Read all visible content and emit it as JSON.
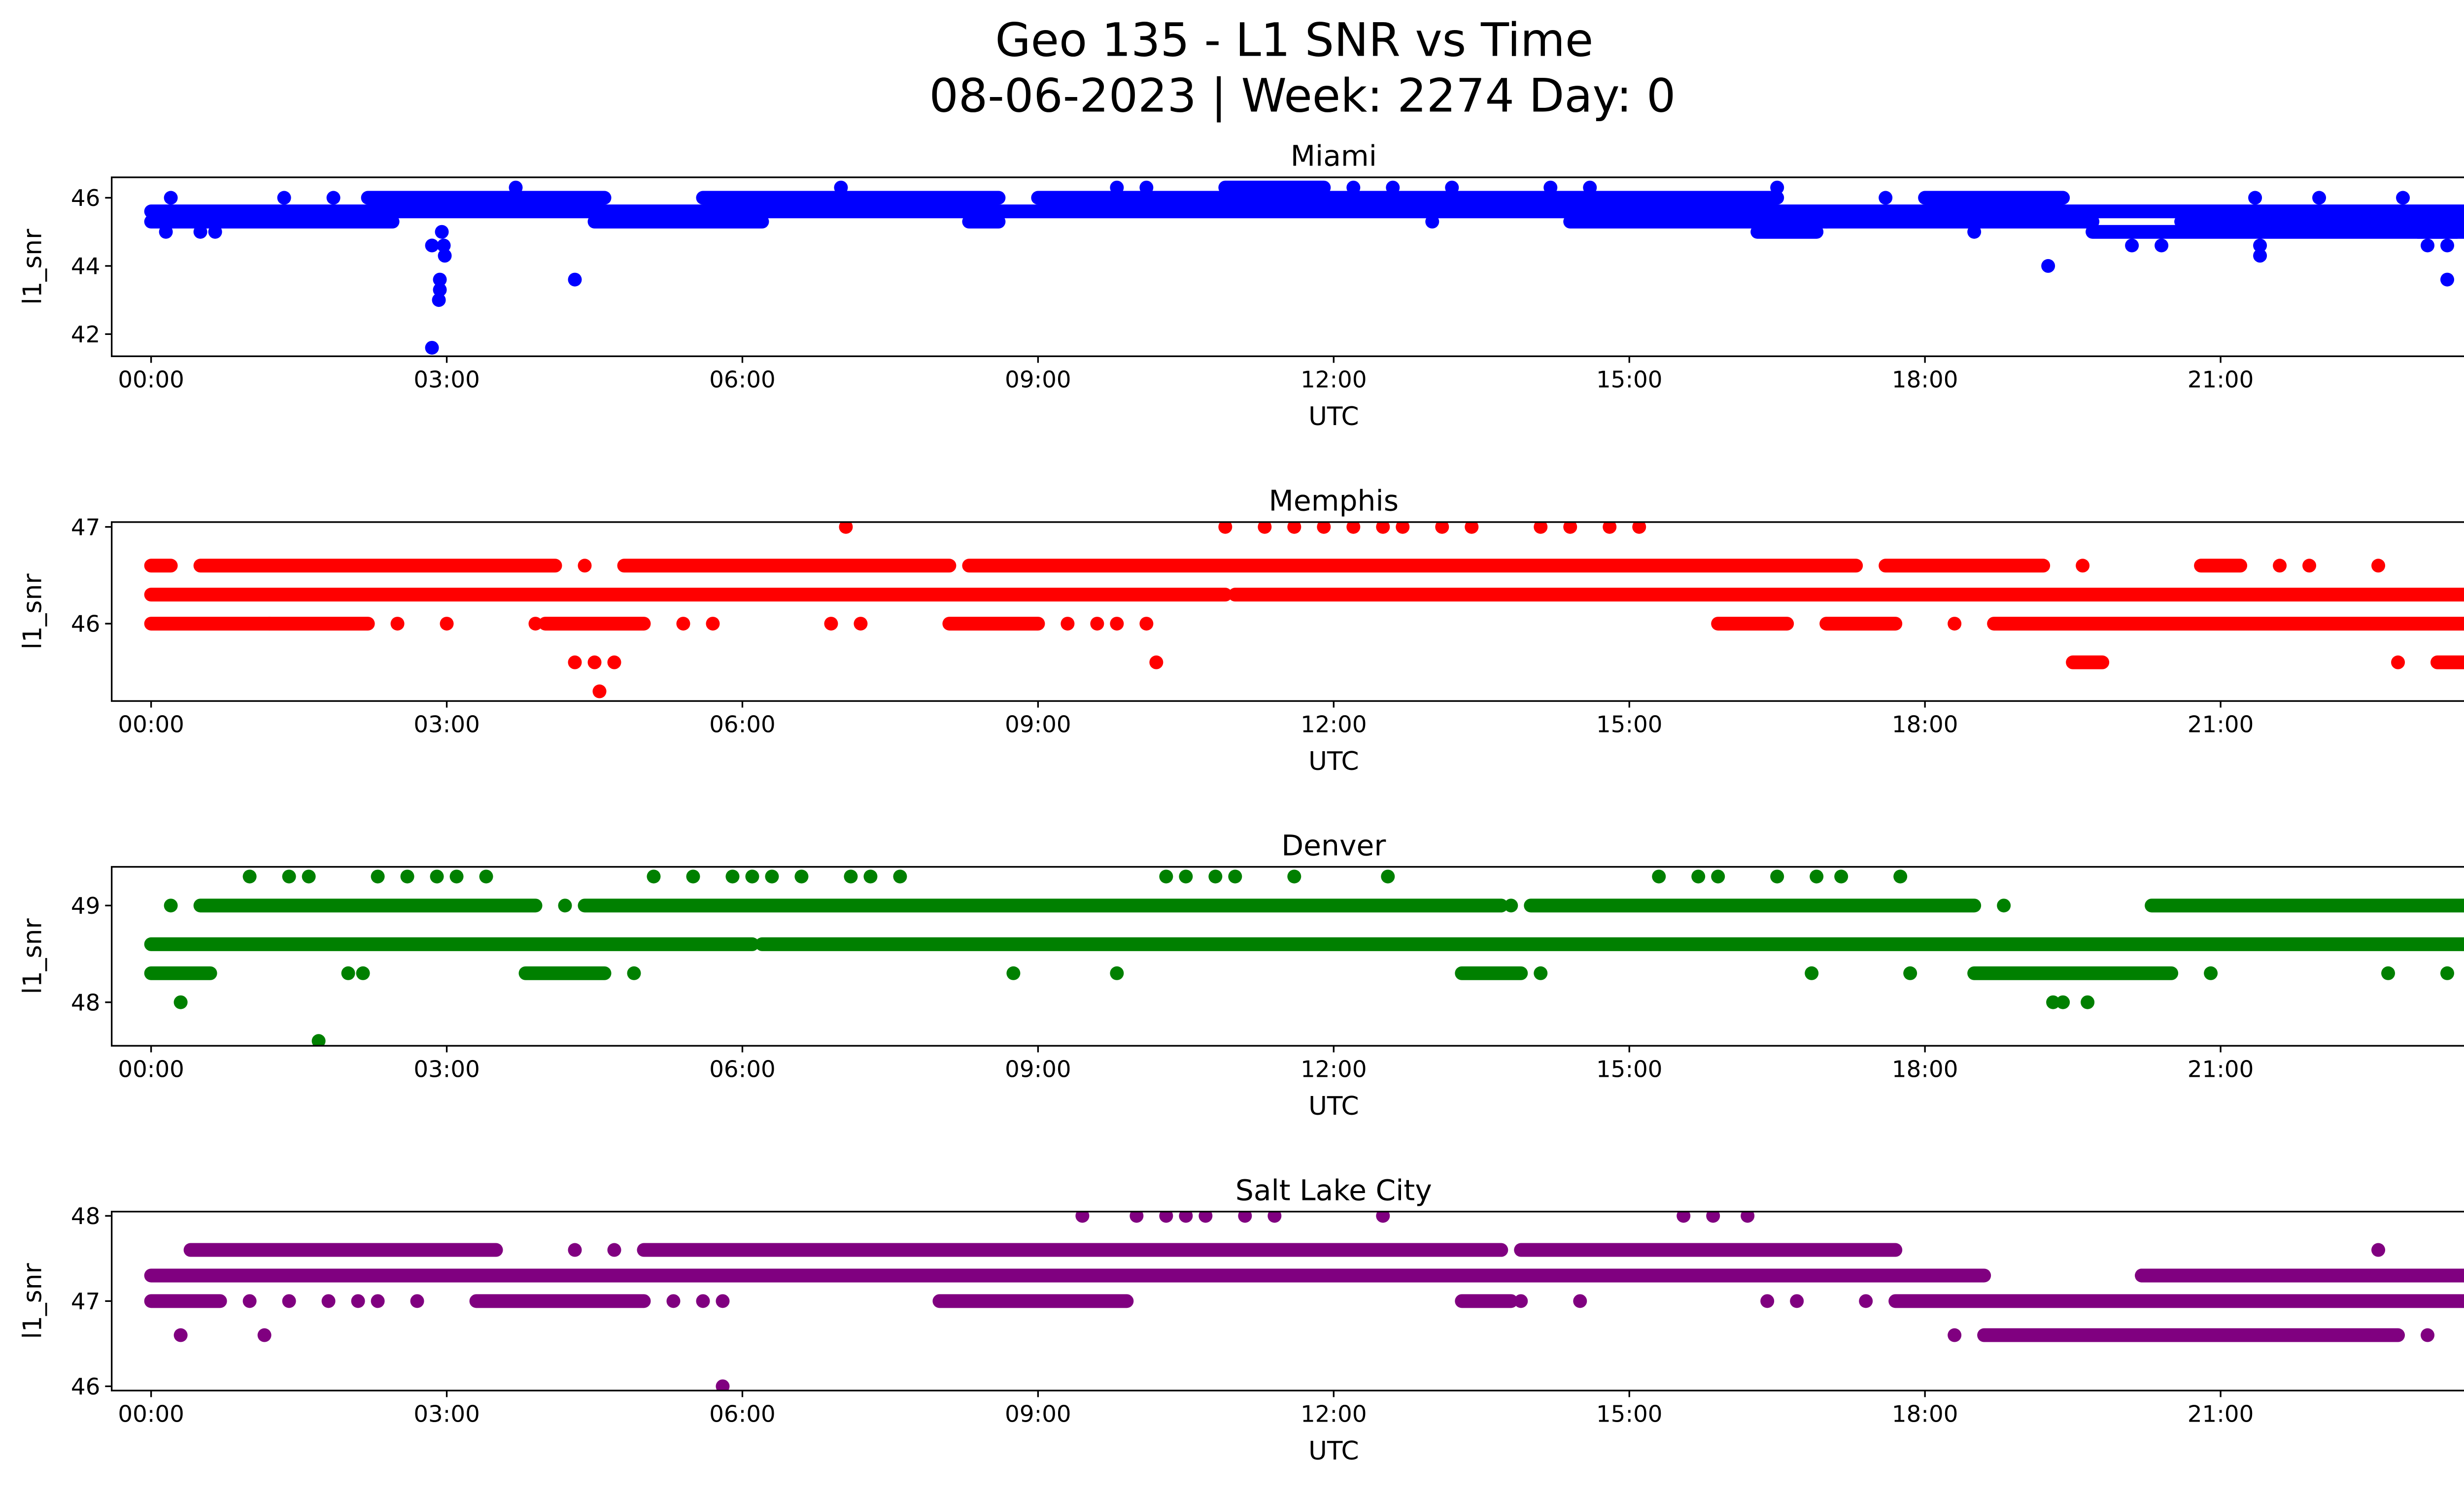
{
  "figure": {
    "title_line1": "Geo 135 - L1 SNR vs Time",
    "title_line2": "08-06-2023 | Week: 2274 Day: 0"
  },
  "chart_data": [
    {
      "type": "scatter",
      "title": "Miami",
      "color": "#0000ff",
      "xlabel": "UTC",
      "ylabel": "l1_snr",
      "xlim_hours": [
        -0.4,
        24.4
      ],
      "ylim": [
        41.35,
        46.6
      ],
      "x_ticks": [
        "00:00",
        "03:00",
        "06:00",
        "09:00",
        "12:00",
        "15:00",
        "18:00",
        "21:00",
        "00:00"
      ],
      "x_tick_hours": [
        0,
        3,
        6,
        9,
        12,
        15,
        18,
        21,
        24
      ],
      "y_ticks": [
        42,
        44,
        46
      ],
      "grid": false,
      "runs": [
        {
          "y": 45.3,
          "start": 0.0,
          "end": 2.45
        },
        {
          "y": 45.6,
          "start": 0.0,
          "end": 2.3
        },
        {
          "y": 45.6,
          "start": 2.3,
          "end": 24.0
        },
        {
          "y": 46.0,
          "start": 2.2,
          "end": 4.6
        },
        {
          "y": 45.3,
          "start": 4.5,
          "end": 6.2
        },
        {
          "y": 46.0,
          "start": 5.6,
          "end": 8.6
        },
        {
          "y": 45.3,
          "start": 8.3,
          "end": 8.6
        },
        {
          "y": 46.0,
          "start": 9.0,
          "end": 14.9
        },
        {
          "y": 46.3,
          "start": 10.9,
          "end": 11.9
        },
        {
          "y": 45.3,
          "start": 14.4,
          "end": 19.7
        },
        {
          "y": 45.0,
          "start": 16.3,
          "end": 16.9
        },
        {
          "y": 46.0,
          "start": 18.0,
          "end": 19.4
        },
        {
          "y": 45.0,
          "start": 19.7,
          "end": 23.4
        },
        {
          "y": 45.3,
          "start": 20.6,
          "end": 23.2
        },
        {
          "y": 46.0,
          "start": 14.5,
          "end": 16.5
        },
        {
          "y": 45.3,
          "start": 23.3,
          "end": 24.0
        },
        {
          "y": 45.0,
          "start": 23.0,
          "end": 23.6
        }
      ],
      "points": [
        {
          "t": 0.2,
          "y": 46.0
        },
        {
          "t": 0.15,
          "y": 45.0
        },
        {
          "t": 0.5,
          "y": 45.0
        },
        {
          "t": 0.65,
          "y": 45.0
        },
        {
          "t": 1.35,
          "y": 46.0
        },
        {
          "t": 1.85,
          "y": 46.0
        },
        {
          "t": 2.85,
          "y": 44.6
        },
        {
          "t": 2.95,
          "y": 45.0
        },
        {
          "t": 2.97,
          "y": 44.6
        },
        {
          "t": 2.98,
          "y": 44.3
        },
        {
          "t": 2.93,
          "y": 43.6
        },
        {
          "t": 2.93,
          "y": 43.3
        },
        {
          "t": 2.92,
          "y": 43.0
        },
        {
          "t": 2.85,
          "y": 41.6
        },
        {
          "t": 3.7,
          "y": 46.3
        },
        {
          "t": 4.3,
          "y": 43.6
        },
        {
          "t": 7.0,
          "y": 46.3
        },
        {
          "t": 9.8,
          "y": 46.3
        },
        {
          "t": 10.1,
          "y": 46.3
        },
        {
          "t": 12.2,
          "y": 46.3
        },
        {
          "t": 12.6,
          "y": 46.3
        },
        {
          "t": 13.0,
          "y": 45.3
        },
        {
          "t": 13.2,
          "y": 46.3
        },
        {
          "t": 14.2,
          "y": 46.3
        },
        {
          "t": 14.6,
          "y": 46.3
        },
        {
          "t": 16.5,
          "y": 46.3
        },
        {
          "t": 17.6,
          "y": 46.0
        },
        {
          "t": 17.0,
          "y": 45.3
        },
        {
          "t": 18.5,
          "y": 45.0
        },
        {
          "t": 19.25,
          "y": 44.0
        },
        {
          "t": 20.1,
          "y": 44.6
        },
        {
          "t": 20.4,
          "y": 44.6
        },
        {
          "t": 21.4,
          "y": 44.6
        },
        {
          "t": 21.4,
          "y": 44.3
        },
        {
          "t": 21.35,
          "y": 46.0
        },
        {
          "t": 22.0,
          "y": 46.0
        },
        {
          "t": 22.85,
          "y": 46.0
        },
        {
          "t": 23.1,
          "y": 44.6
        },
        {
          "t": 23.3,
          "y": 44.6
        },
        {
          "t": 23.55,
          "y": 44.6
        },
        {
          "t": 23.3,
          "y": 43.6
        },
        {
          "t": 23.9,
          "y": 44.3
        }
      ]
    },
    {
      "type": "scatter",
      "title": "Memphis",
      "color": "#ff0000",
      "xlabel": "UTC",
      "ylabel": "l1_snr",
      "xlim_hours": [
        -0.4,
        24.4
      ],
      "ylim": [
        45.2,
        47.05
      ],
      "x_ticks": [
        "00:00",
        "03:00",
        "06:00",
        "09:00",
        "12:00",
        "15:00",
        "18:00",
        "21:00",
        "00:00"
      ],
      "x_tick_hours": [
        0,
        3,
        6,
        9,
        12,
        15,
        18,
        21,
        24
      ],
      "y_ticks": [
        46,
        47
      ],
      "grid": false,
      "runs": [
        {
          "y": 46.3,
          "start": 0.0,
          "end": 10.9
        },
        {
          "y": 46.3,
          "start": 11.0,
          "end": 24.0
        },
        {
          "y": 46.6,
          "start": 0.0,
          "end": 0.2
        },
        {
          "y": 46.6,
          "start": 0.5,
          "end": 4.1
        },
        {
          "y": 46.6,
          "start": 4.8,
          "end": 8.1
        },
        {
          "y": 46.6,
          "start": 8.3,
          "end": 17.3
        },
        {
          "y": 46.6,
          "start": 17.6,
          "end": 19.2
        },
        {
          "y": 46.0,
          "start": 0.0,
          "end": 1.2
        },
        {
          "y": 46.0,
          "start": 1.2,
          "end": 2.2
        },
        {
          "y": 46.0,
          "start": 4.0,
          "end": 5.0
        },
        {
          "y": 46.0,
          "start": 8.1,
          "end": 9.0
        },
        {
          "y": 46.0,
          "start": 15.9,
          "end": 16.6
        },
        {
          "y": 46.0,
          "start": 17.0,
          "end": 17.7
        },
        {
          "y": 46.0,
          "start": 18.7,
          "end": 24.0
        },
        {
          "y": 46.6,
          "start": 20.8,
          "end": 21.2
        },
        {
          "y": 45.6,
          "start": 19.5,
          "end": 19.8
        },
        {
          "y": 45.6,
          "start": 23.2,
          "end": 23.6
        }
      ],
      "points": [
        {
          "t": 2.5,
          "y": 46.0
        },
        {
          "t": 3.0,
          "y": 46.0
        },
        {
          "t": 3.9,
          "y": 46.0
        },
        {
          "t": 5.4,
          "y": 46.0
        },
        {
          "t": 5.7,
          "y": 46.0
        },
        {
          "t": 6.9,
          "y": 46.0
        },
        {
          "t": 7.2,
          "y": 46.0
        },
        {
          "t": 9.3,
          "y": 46.0
        },
        {
          "t": 9.6,
          "y": 46.0
        },
        {
          "t": 9.8,
          "y": 46.0
        },
        {
          "t": 10.1,
          "y": 46.0
        },
        {
          "t": 18.3,
          "y": 46.0
        },
        {
          "t": 4.3,
          "y": 45.6
        },
        {
          "t": 4.5,
          "y": 45.6
        },
        {
          "t": 4.7,
          "y": 45.6
        },
        {
          "t": 10.2,
          "y": 45.6
        },
        {
          "t": 22.8,
          "y": 45.6
        },
        {
          "t": 4.55,
          "y": 45.3
        },
        {
          "t": 7.05,
          "y": 47.0
        },
        {
          "t": 10.9,
          "y": 47.0
        },
        {
          "t": 11.3,
          "y": 47.0
        },
        {
          "t": 11.6,
          "y": 47.0
        },
        {
          "t": 11.9,
          "y": 47.0
        },
        {
          "t": 12.2,
          "y": 47.0
        },
        {
          "t": 12.5,
          "y": 47.0
        },
        {
          "t": 12.7,
          "y": 47.0
        },
        {
          "t": 13.1,
          "y": 47.0
        },
        {
          "t": 13.4,
          "y": 47.0
        },
        {
          "t": 14.1,
          "y": 47.0
        },
        {
          "t": 14.4,
          "y": 47.0
        },
        {
          "t": 14.8,
          "y": 47.0
        },
        {
          "t": 15.1,
          "y": 47.0
        },
        {
          "t": 19.6,
          "y": 46.6
        },
        {
          "t": 21.6,
          "y": 46.6
        },
        {
          "t": 21.9,
          "y": 46.6
        },
        {
          "t": 22.6,
          "y": 46.6
        },
        {
          "t": 4.4,
          "y": 46.6
        }
      ]
    },
    {
      "type": "scatter",
      "title": "Denver",
      "color": "#008000",
      "xlabel": "UTC",
      "ylabel": "l1_snr",
      "xlim_hours": [
        -0.4,
        24.4
      ],
      "ylim": [
        47.55,
        49.4
      ],
      "x_ticks": [
        "00:00",
        "03:00",
        "06:00",
        "09:00",
        "12:00",
        "15:00",
        "18:00",
        "21:00",
        "00:00"
      ],
      "x_tick_hours": [
        0,
        3,
        6,
        9,
        12,
        15,
        18,
        21,
        24
      ],
      "y_ticks": [
        48,
        49
      ],
      "grid": false,
      "runs": [
        {
          "y": 48.6,
          "start": 0.0,
          "end": 6.1
        },
        {
          "y": 48.6,
          "start": 6.2,
          "end": 24.0
        },
        {
          "y": 49.0,
          "start": 0.5,
          "end": 3.9
        },
        {
          "y": 49.0,
          "start": 4.4,
          "end": 13.7
        },
        {
          "y": 49.0,
          "start": 14.0,
          "end": 18.5
        },
        {
          "y": 49.0,
          "start": 20.3,
          "end": 24.0
        },
        {
          "y": 48.3,
          "start": 0.0,
          "end": 0.6
        },
        {
          "y": 48.3,
          "start": 3.8,
          "end": 4.6
        },
        {
          "y": 48.3,
          "start": 13.3,
          "end": 13.9
        },
        {
          "y": 48.3,
          "start": 18.5,
          "end": 20.5
        }
      ],
      "points": [
        {
          "t": 0.2,
          "y": 49.0
        },
        {
          "t": 4.2,
          "y": 49.0
        },
        {
          "t": 13.8,
          "y": 49.0
        },
        {
          "t": 18.8,
          "y": 49.0
        },
        {
          "t": 1.0,
          "y": 49.3
        },
        {
          "t": 1.4,
          "y": 49.3
        },
        {
          "t": 1.6,
          "y": 49.3
        },
        {
          "t": 2.3,
          "y": 49.3
        },
        {
          "t": 2.6,
          "y": 49.3
        },
        {
          "t": 2.9,
          "y": 49.3
        },
        {
          "t": 3.1,
          "y": 49.3
        },
        {
          "t": 3.4,
          "y": 49.3
        },
        {
          "t": 5.1,
          "y": 49.3
        },
        {
          "t": 5.5,
          "y": 49.3
        },
        {
          "t": 5.9,
          "y": 49.3
        },
        {
          "t": 6.1,
          "y": 49.3
        },
        {
          "t": 6.3,
          "y": 49.3
        },
        {
          "t": 6.6,
          "y": 49.3
        },
        {
          "t": 7.1,
          "y": 49.3
        },
        {
          "t": 7.3,
          "y": 49.3
        },
        {
          "t": 7.6,
          "y": 49.3
        },
        {
          "t": 10.3,
          "y": 49.3
        },
        {
          "t": 10.5,
          "y": 49.3
        },
        {
          "t": 10.8,
          "y": 49.3
        },
        {
          "t": 11.0,
          "y": 49.3
        },
        {
          "t": 11.6,
          "y": 49.3
        },
        {
          "t": 12.55,
          "y": 49.3
        },
        {
          "t": 15.3,
          "y": 49.3
        },
        {
          "t": 15.7,
          "y": 49.3
        },
        {
          "t": 15.9,
          "y": 49.3
        },
        {
          "t": 16.5,
          "y": 49.3
        },
        {
          "t": 16.9,
          "y": 49.3
        },
        {
          "t": 17.15,
          "y": 49.3
        },
        {
          "t": 17.75,
          "y": 49.3
        },
        {
          "t": 23.85,
          "y": 49.3
        },
        {
          "t": 2.0,
          "y": 48.3
        },
        {
          "t": 2.15,
          "y": 48.3
        },
        {
          "t": 4.9,
          "y": 48.3
        },
        {
          "t": 8.75,
          "y": 48.3
        },
        {
          "t": 9.8,
          "y": 48.3
        },
        {
          "t": 14.1,
          "y": 48.3
        },
        {
          "t": 16.85,
          "y": 48.3
        },
        {
          "t": 17.85,
          "y": 48.3
        },
        {
          "t": 20.9,
          "y": 48.3
        },
        {
          "t": 22.7,
          "y": 48.3
        },
        {
          "t": 23.3,
          "y": 48.3
        },
        {
          "t": 0.3,
          "y": 48.0
        },
        {
          "t": 19.3,
          "y": 48.0
        },
        {
          "t": 19.4,
          "y": 48.0
        },
        {
          "t": 19.65,
          "y": 48.0
        },
        {
          "t": 1.7,
          "y": 47.6
        }
      ]
    },
    {
      "type": "scatter",
      "title": "Salt Lake City",
      "color": "#800080",
      "xlabel": "UTC",
      "ylabel": "l1_snr",
      "xlim_hours": [
        -0.4,
        24.4
      ],
      "ylim": [
        45.95,
        48.05
      ],
      "x_ticks": [
        "00:00",
        "03:00",
        "06:00",
        "09:00",
        "12:00",
        "15:00",
        "18:00",
        "21:00",
        "00:00"
      ],
      "x_tick_hours": [
        0,
        3,
        6,
        9,
        12,
        15,
        18,
        21,
        24
      ],
      "y_ticks": [
        46,
        47,
        48
      ],
      "grid": false,
      "runs": [
        {
          "y": 47.3,
          "start": 0.0,
          "end": 18.6
        },
        {
          "y": 47.3,
          "start": 20.2,
          "end": 24.0
        },
        {
          "y": 47.6,
          "start": 0.4,
          "end": 3.5
        },
        {
          "y": 47.6,
          "start": 5.0,
          "end": 13.7
        },
        {
          "y": 47.6,
          "start": 13.9,
          "end": 17.7
        },
        {
          "y": 47.0,
          "start": 0.0,
          "end": 0.7
        },
        {
          "y": 47.0,
          "start": 3.3,
          "end": 5.0
        },
        {
          "y": 47.0,
          "start": 8.0,
          "end": 9.9
        },
        {
          "y": 47.0,
          "start": 13.3,
          "end": 13.8
        },
        {
          "y": 47.0,
          "start": 17.7,
          "end": 24.0
        },
        {
          "y": 46.6,
          "start": 18.6,
          "end": 22.8
        },
        {
          "y": 47.3,
          "start": 20.2,
          "end": 24.0
        }
      ],
      "points": [
        {
          "t": 0.3,
          "y": 46.6
        },
        {
          "t": 1.15,
          "y": 46.6
        },
        {
          "t": 18.3,
          "y": 46.6
        },
        {
          "t": 23.1,
          "y": 46.6
        },
        {
          "t": 23.6,
          "y": 46.6
        },
        {
          "t": 23.85,
          "y": 46.6
        },
        {
          "t": 1.0,
          "y": 47.0
        },
        {
          "t": 1.4,
          "y": 47.0
        },
        {
          "t": 1.8,
          "y": 47.0
        },
        {
          "t": 2.1,
          "y": 47.0
        },
        {
          "t": 2.3,
          "y": 47.0
        },
        {
          "t": 2.7,
          "y": 47.0
        },
        {
          "t": 5.3,
          "y": 47.0
        },
        {
          "t": 5.6,
          "y": 47.0
        },
        {
          "t": 5.8,
          "y": 47.0
        },
        {
          "t": 13.9,
          "y": 47.0
        },
        {
          "t": 14.5,
          "y": 47.0
        },
        {
          "t": 16.4,
          "y": 47.0
        },
        {
          "t": 16.7,
          "y": 47.0
        },
        {
          "t": 17.4,
          "y": 47.0
        },
        {
          "t": 4.3,
          "y": 47.6
        },
        {
          "t": 4.7,
          "y": 47.6
        },
        {
          "t": 22.6,
          "y": 47.6
        },
        {
          "t": 9.45,
          "y": 48.0
        },
        {
          "t": 10.0,
          "y": 48.0
        },
        {
          "t": 10.3,
          "y": 48.0
        },
        {
          "t": 10.5,
          "y": 48.0
        },
        {
          "t": 10.7,
          "y": 48.0
        },
        {
          "t": 11.1,
          "y": 48.0
        },
        {
          "t": 11.4,
          "y": 48.0
        },
        {
          "t": 12.5,
          "y": 48.0
        },
        {
          "t": 15.55,
          "y": 48.0
        },
        {
          "t": 15.85,
          "y": 48.0
        },
        {
          "t": 16.2,
          "y": 48.0
        },
        {
          "t": 5.8,
          "y": 46.0
        }
      ]
    }
  ]
}
